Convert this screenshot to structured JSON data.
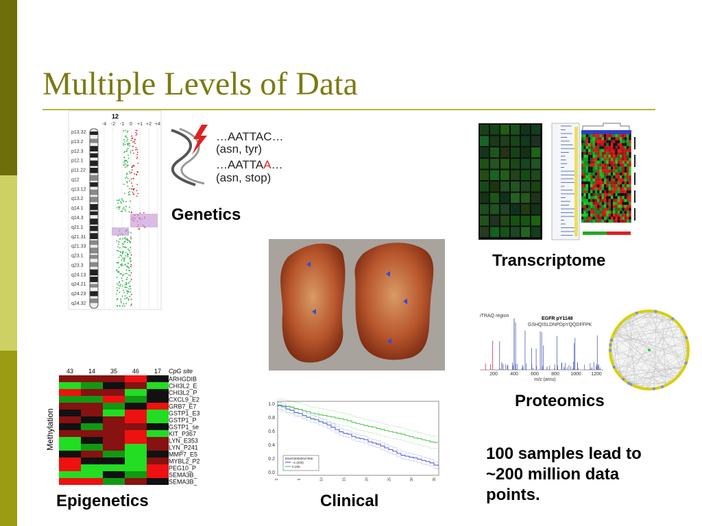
{
  "title": "Multiple Levels of Data",
  "genetics": {
    "label": "Genetics",
    "chromosome": "12",
    "scale": [
      "-4",
      "-2",
      "-1",
      "0",
      "+1",
      "+2",
      "+4"
    ],
    "bands": [
      "p13.32",
      "p13.2",
      "p12.3",
      "p12.1",
      "p11.22",
      "q12",
      "q13.12",
      "q13.2",
      "q14.1",
      "q14.3",
      "q21.1",
      "q21.31",
      "q21.33",
      "q23.1",
      "q23.3",
      "q24.13",
      "q24.21",
      "q24.23",
      "q24.32"
    ],
    "dna": {
      "line1": "…AATTAC…",
      "line2": "(asn, tyr)",
      "line3_start": "…AATTA",
      "line3_mutation": "A",
      "line3_end": "…",
      "line4": "(asn, stop)"
    }
  },
  "transcriptome": {
    "label": "Transcriptome"
  },
  "proteomics": {
    "label": "Proteomics",
    "region": "iTRAQ region",
    "spectrum_title": "EGFR  pY1148",
    "peptide": "GSHQISLDNPDpYQQDFFPK",
    "x_axis": "m/z (amu)",
    "x_ticks": [
      "200",
      "400",
      "600",
      "800",
      "1000",
      "1200"
    ]
  },
  "epigenetics": {
    "label": "Epigenetics",
    "y_axis": "Methylation",
    "header": "CpG site",
    "columns": [
      "43",
      "14",
      "35",
      "46",
      "17"
    ],
    "sites": [
      "ARHGDIB",
      "CHI3L2_E",
      "CHI3L2_P",
      "CXCL9_E2",
      "GRB7_E7",
      "GSTP1_E3",
      "GSTP1_P",
      "GSTP1_se",
      "KIT_P367",
      "LYN_E353",
      "LYN_P241",
      "MMP7_E5",
      "MYBL2_P2",
      "PEG10_P",
      "SEMA3B_",
      "SEMA3B_"
    ]
  },
  "clinical": {
    "label": "Clinical",
    "y_ticks": [
      "1.0",
      "0.8",
      "0.6",
      "0.4",
      "0.2",
      "0.0"
    ],
    "x_ticks": [
      "0",
      "5",
      "10",
      "15",
      "20",
      "25",
      "30",
      "35"
    ],
    "legend": [
      "ENSG00000047056",
      "~1 (200)",
      "0 (30)"
    ]
  },
  "summary": [
    "100 samples lead to",
    "~200 million data",
    "points."
  ]
}
